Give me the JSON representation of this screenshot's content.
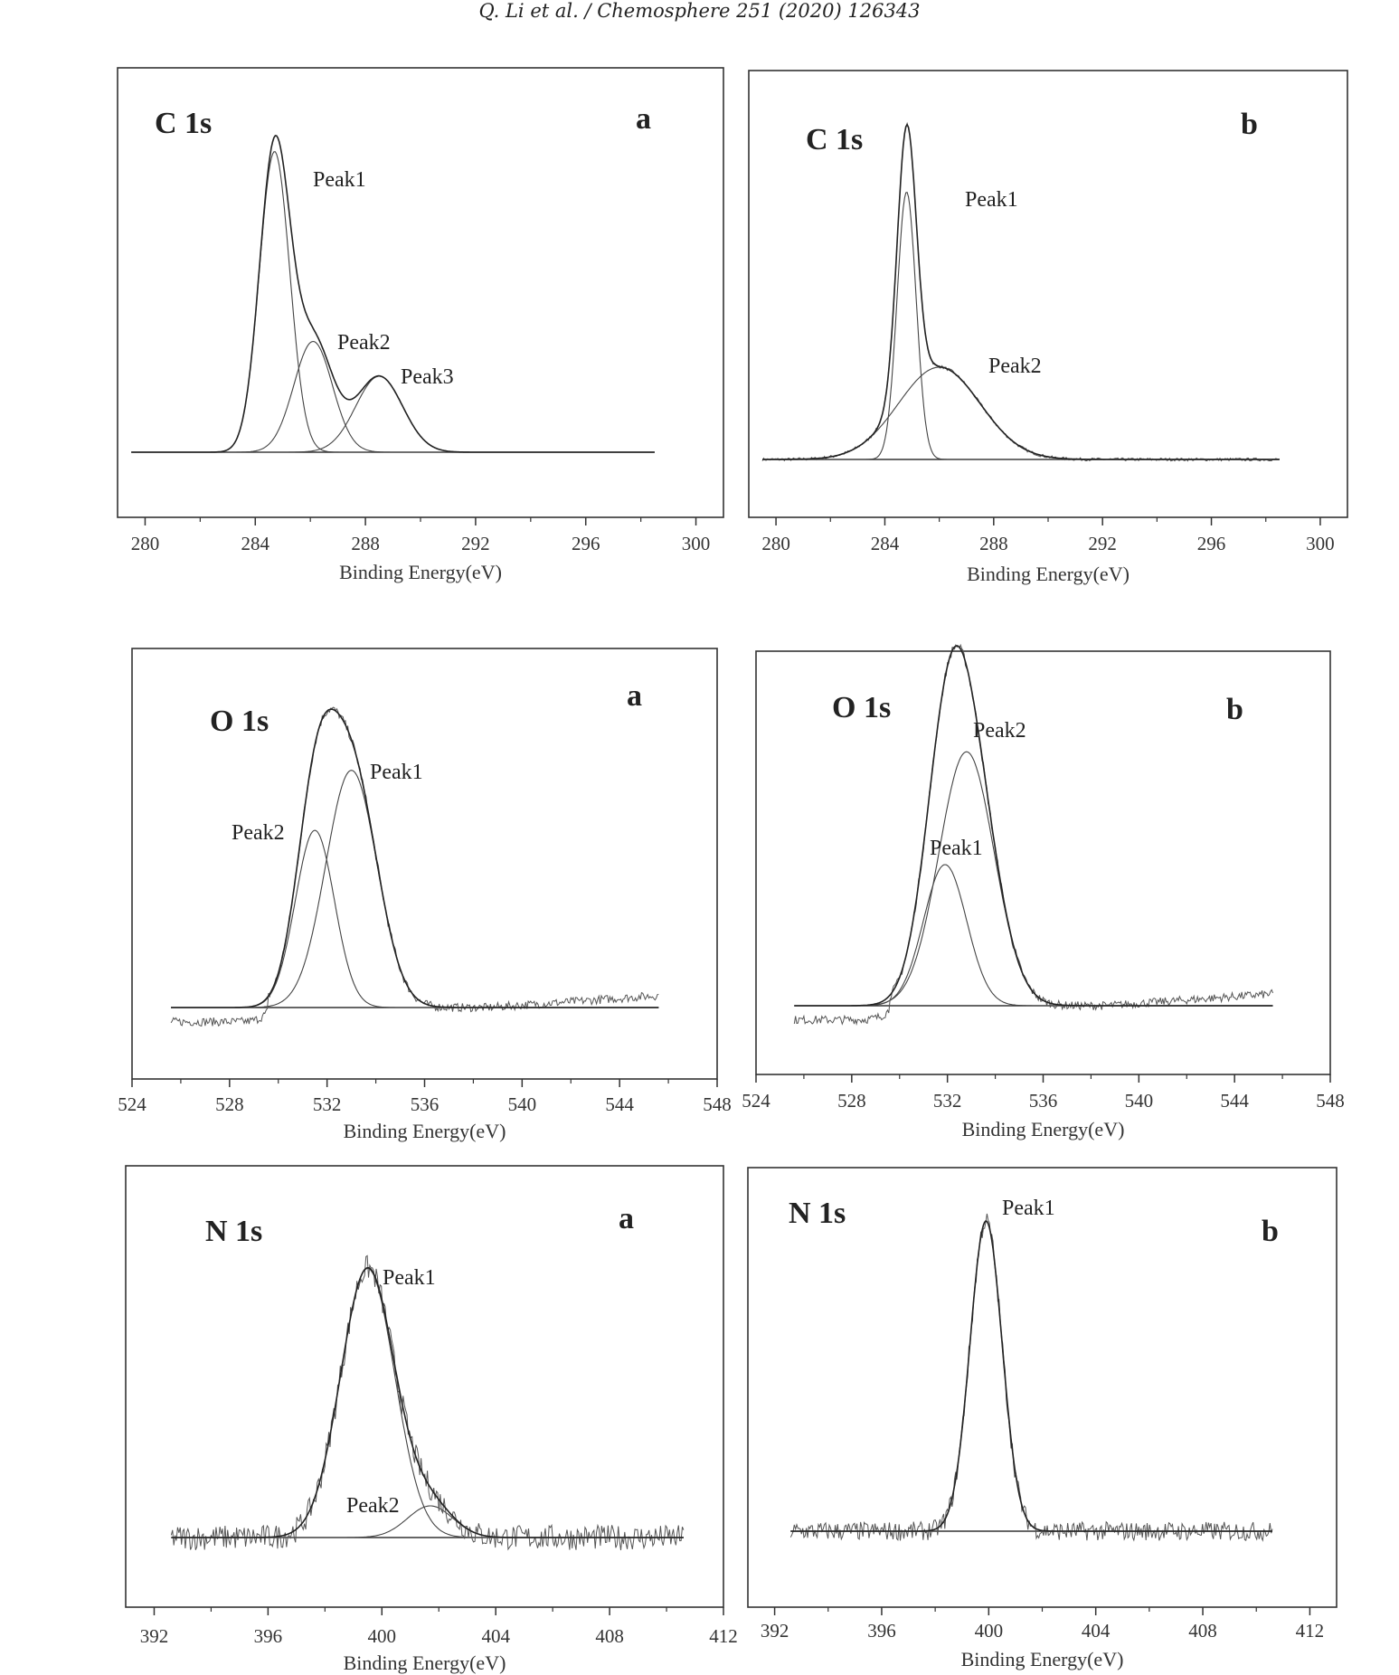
{
  "header": {
    "text": "Q. Li et al. / Chemosphere 251 (2020) 126343"
  },
  "chart_data": [
    {
      "type": "line",
      "title": "C 1s",
      "panel_letter": "a",
      "xlabel": "Binding Energy(eV)",
      "xlim": [
        279,
        301
      ],
      "xticks": [
        "280",
        "284",
        "288",
        "292",
        "296",
        "300"
      ],
      "x_range": [
        279.5,
        298.5
      ],
      "peaks": [
        {
          "label": "Peak1",
          "center": 284.7,
          "height": 0.95,
          "sigma": 0.55
        },
        {
          "label": "Peak2",
          "center": 286.1,
          "height": 0.35,
          "sigma": 0.7
        },
        {
          "label": "Peak3",
          "center": 288.5,
          "height": 0.24,
          "sigma": 0.85
        }
      ]
    },
    {
      "type": "line",
      "title": "C 1s",
      "panel_letter": "b",
      "xlabel": "Binding Energy(eV)",
      "xlim": [
        279,
        301
      ],
      "xticks": [
        "280",
        "284",
        "288",
        "292",
        "296",
        "300"
      ],
      "x_range": [
        279.5,
        298.5
      ],
      "peaks": [
        {
          "label": "Peak1",
          "center": 284.8,
          "height": 0.87,
          "sigma": 0.35
        },
        {
          "label": "Peak2",
          "center": 286.0,
          "height": 0.3,
          "sigma": 1.5
        }
      ]
    },
    {
      "type": "line",
      "title": "O 1s",
      "panel_letter": "a",
      "xlabel": "Binding Energy(eV)",
      "xlim": [
        524,
        548
      ],
      "xticks": [
        "524",
        "528",
        "532",
        "536",
        "540",
        "544",
        "548"
      ],
      "x_range": [
        525.6,
        545.6
      ],
      "peaks": [
        {
          "label": "Peak1",
          "center": 531.5,
          "height": 0.62,
          "sigma": 0.8
        },
        {
          "label": "Peak2",
          "center": 533.0,
          "height": 0.83,
          "sigma": 1.05
        }
      ]
    },
    {
      "type": "line",
      "title": "O 1s",
      "panel_letter": "b",
      "xlabel": "Binding Energy(eV)",
      "xlim": [
        524,
        548
      ],
      "xticks": [
        "524",
        "528",
        "532",
        "536",
        "540",
        "544",
        "548"
      ],
      "x_range": [
        525.6,
        545.6
      ],
      "peaks": [
        {
          "label": "Peak1",
          "center": 531.9,
          "height": 0.5,
          "sigma": 0.9
        },
        {
          "label": "Peak2",
          "center": 532.8,
          "height": 0.9,
          "sigma": 1.15
        }
      ]
    },
    {
      "type": "line",
      "title": "N 1s",
      "panel_letter": "a",
      "xlabel": "Binding Energy(eV)",
      "xlim": [
        391,
        412
      ],
      "xticks": [
        "392",
        "396",
        "400",
        "404",
        "408",
        "412"
      ],
      "x_range": [
        392.6,
        410.6
      ],
      "peaks": [
        {
          "label": "Peak1",
          "center": 399.5,
          "height": 0.85,
          "sigma": 0.95
        },
        {
          "label": "Peak2",
          "center": 401.7,
          "height": 0.1,
          "sigma": 0.8
        }
      ]
    },
    {
      "type": "line",
      "title": "N 1s",
      "panel_letter": "b",
      "xlabel": "Binding Energy(eV)",
      "xlim": [
        391,
        413
      ],
      "xticks": [
        "392",
        "396",
        "400",
        "404",
        "408",
        "412"
      ],
      "x_range": [
        392.6,
        410.6
      ],
      "peaks": [
        {
          "label": "Peak1",
          "center": 399.9,
          "height": 0.98,
          "sigma": 0.6
        }
      ]
    }
  ]
}
